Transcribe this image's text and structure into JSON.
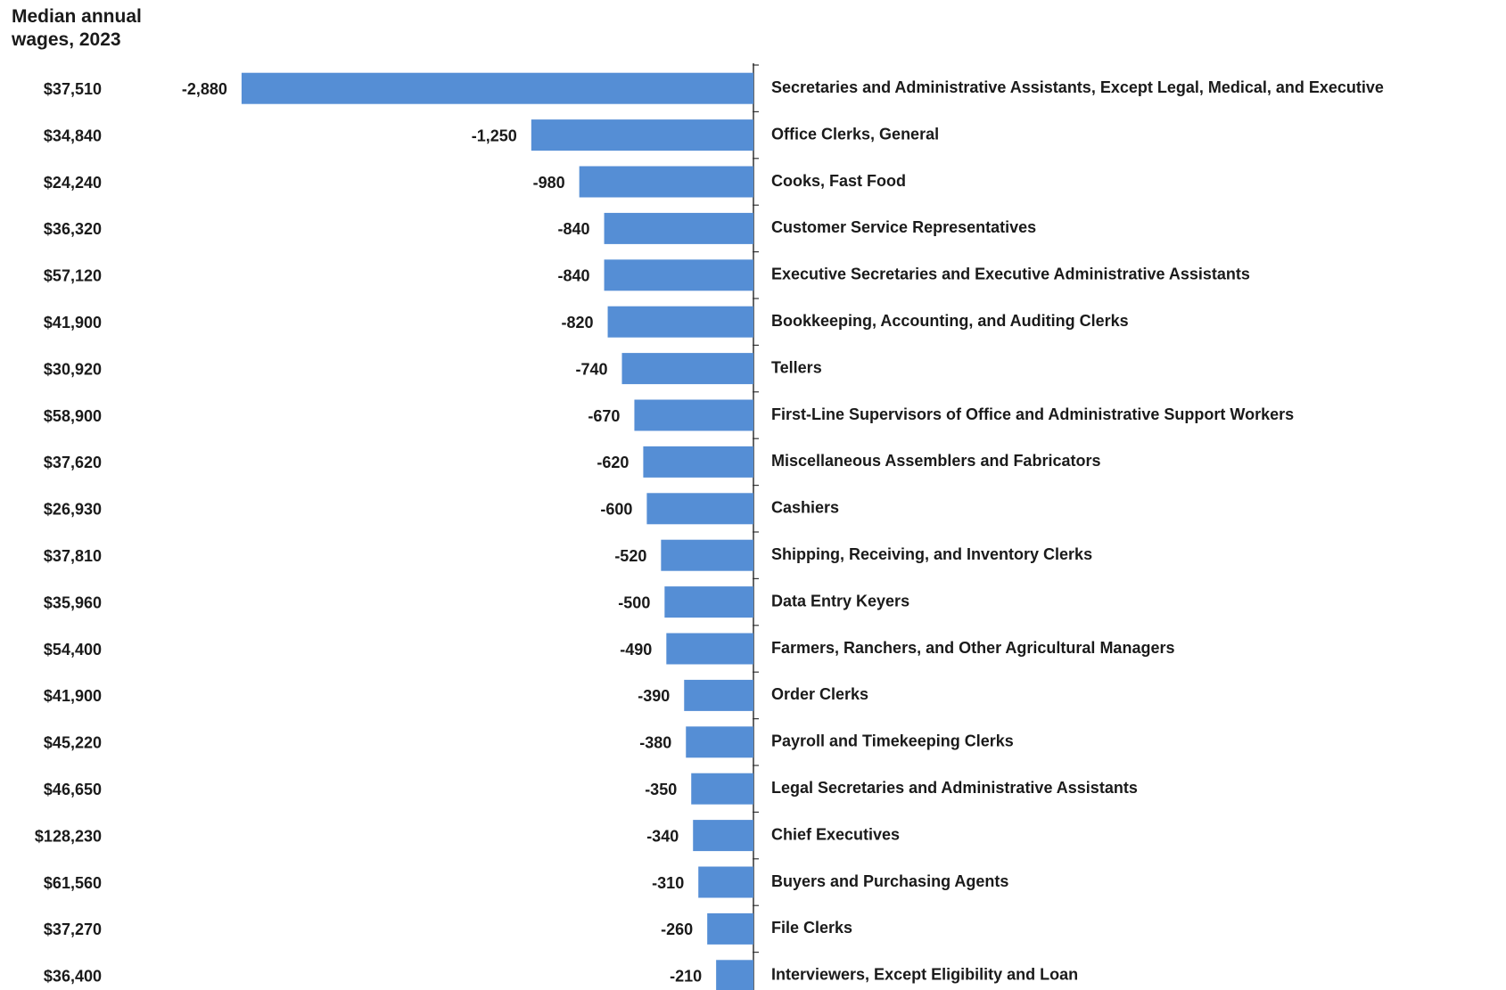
{
  "chart_data": {
    "type": "bar",
    "orientation": "horizontal",
    "title": "Median annual wages, 2023",
    "categories": [
      "Secretaries and Administrative Assistants, Except Legal, Medical, and Executive",
      "Office Clerks, General",
      "Cooks, Fast Food",
      "Customer Service Representatives",
      "Executive Secretaries and Executive Administrative Assistants",
      "Bookkeeping, Accounting, and Auditing Clerks",
      "Tellers",
      "First-Line Supervisors of Office and Administrative Support Workers",
      "Miscellaneous Assemblers and Fabricators",
      "Cashiers",
      "Shipping, Receiving, and Inventory Clerks",
      "Data Entry Keyers",
      "Farmers, Ranchers, and Other Agricultural Managers",
      "Order Clerks",
      "Payroll and Timekeeping Clerks",
      "Legal Secretaries and Administrative Assistants",
      "Chief Executives",
      "Buyers and Purchasing Agents",
      "File Clerks",
      "Interviewers, Except Eligibility and Loan"
    ],
    "wages": [
      "$37,510",
      "$34,840",
      "$24,240",
      "$36,320",
      "$57,120",
      "$41,900",
      "$30,920",
      "$58,900",
      "$37,620",
      "$26,930",
      "$37,810",
      "$35,960",
      "$54,400",
      "$41,900",
      "$45,220",
      "$46,650",
      "$128,230",
      "$61,560",
      "$37,270",
      "$36,400"
    ],
    "values": [
      -2880,
      -1250,
      -980,
      -840,
      -840,
      -820,
      -740,
      -670,
      -620,
      -600,
      -520,
      -500,
      -490,
      -390,
      -380,
      -350,
      -340,
      -310,
      -260,
      -210
    ],
    "value_labels": [
      "-2,880",
      "-1,250",
      "-980",
      "-840",
      "-840",
      "-820",
      "-740",
      "-670",
      "-620",
      "-600",
      "-520",
      "-500",
      "-490",
      "-390",
      "-380",
      "-350",
      "-340",
      "-310",
      "-260",
      "-210"
    ],
    "color": "#558ed5",
    "xlim": [
      -3000,
      0
    ]
  }
}
